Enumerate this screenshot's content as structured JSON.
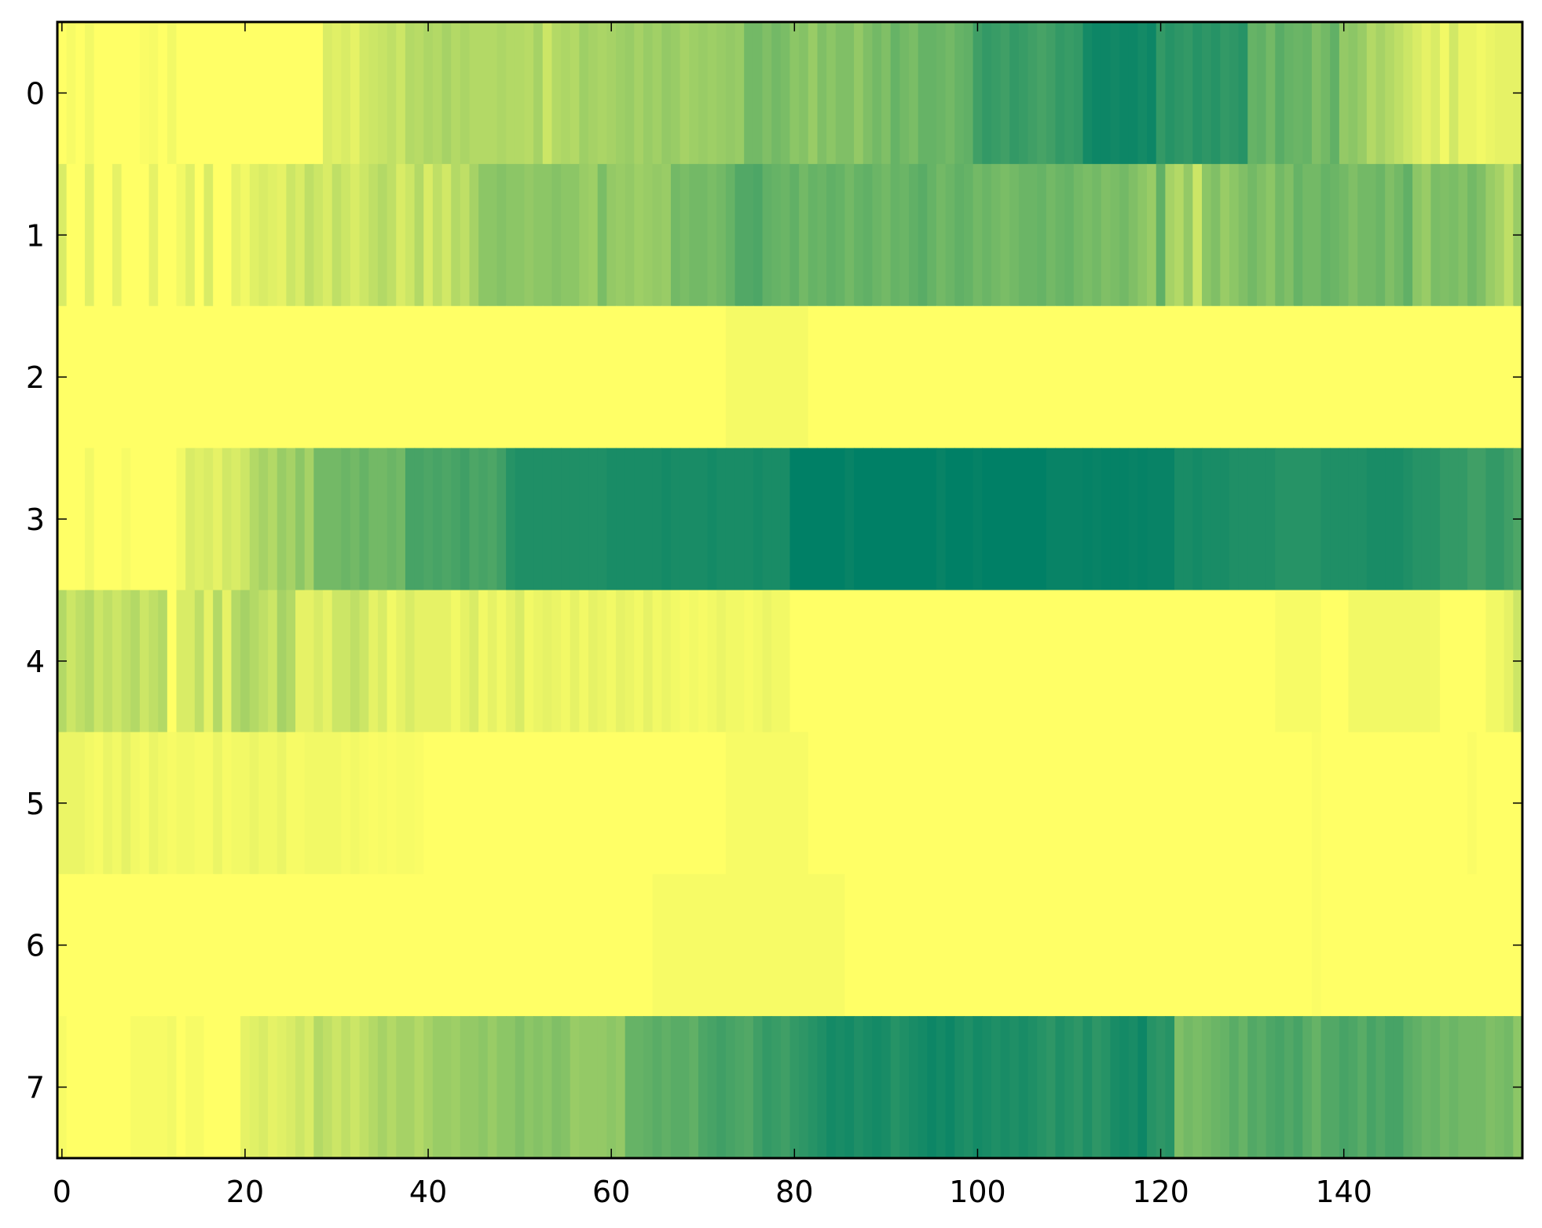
{
  "chart_data": {
    "type": "heatmap",
    "title": "",
    "xlabel": "",
    "ylabel": "",
    "colormap": "summer_r",
    "color_low": "#ffff66",
    "color_high": "#008066",
    "value_range": [
      0,
      1
    ],
    "xlim": [
      -0.5,
      159.5
    ],
    "ylim": [
      7.5,
      -0.5
    ],
    "grid": false,
    "x_ticks": [
      0,
      20,
      40,
      60,
      80,
      100,
      120,
      140
    ],
    "x_tick_labels": [
      "0",
      "20",
      "40",
      "60",
      "80",
      "100",
      "120",
      "140"
    ],
    "y_ticks": [
      0,
      1,
      2,
      3,
      4,
      5,
      6,
      7
    ],
    "y_tick_labels": [
      "0",
      "1",
      "2",
      "3",
      "4",
      "5",
      "6",
      "7"
    ],
    "rows": [
      [
        0,
        0.03,
        0,
        0.05,
        0,
        0,
        0,
        0,
        0,
        0.02,
        0.03,
        0,
        0.05,
        0,
        0,
        0,
        0,
        0,
        0,
        0,
        0,
        0,
        0,
        0,
        0,
        0,
        0,
        0,
        0,
        0.15,
        0.12,
        0.15,
        0.1,
        0.18,
        0.2,
        0.22,
        0.25,
        0.2,
        0.3,
        0.28,
        0.32,
        0.3,
        0.35,
        0.3,
        0.33,
        0.3,
        0.3,
        0.3,
        0.32,
        0.3,
        0.3,
        0.28,
        0.35,
        0.2,
        0.3,
        0.32,
        0.3,
        0.38,
        0.35,
        0.33,
        0.35,
        0.38,
        0.4,
        0.35,
        0.4,
        0.37,
        0.42,
        0.4,
        0.35,
        0.38,
        0.4,
        0.38,
        0.4,
        0.42,
        0.4,
        0.55,
        0.55,
        0.5,
        0.55,
        0.52,
        0.45,
        0.48,
        0.4,
        0.5,
        0.45,
        0.5,
        0.5,
        0.42,
        0.5,
        0.55,
        0.5,
        0.6,
        0.55,
        0.52,
        0.6,
        0.6,
        0.58,
        0.55,
        0.6,
        0.62,
        0.75,
        0.8,
        0.78,
        0.75,
        0.8,
        0.78,
        0.75,
        0.72,
        0.75,
        0.8,
        0.78,
        0.8,
        0.92,
        0.95,
        0.95,
        0.93,
        0.95,
        0.95,
        0.92,
        0.95,
        0.8,
        0.85,
        0.82,
        0.8,
        0.85,
        0.82,
        0.85,
        0.8,
        0.82,
        0.85,
        0.6,
        0.62,
        0.55,
        0.65,
        0.6,
        0.58,
        0.6,
        0.5,
        0.55,
        0.62,
        0.42,
        0.45,
        0.4,
        0.3,
        0.35,
        0.3,
        0.25,
        0.2,
        0.15,
        0.1,
        0.15,
        0.05,
        0.18,
        0.08,
        0.08,
        0.05,
        0.08,
        0.1,
        0.1,
        0.1
      ],
      [
        0.15,
        0,
        0,
        0.12,
        0,
        0,
        0.1,
        0,
        0,
        0,
        0.1,
        0,
        0,
        0.05,
        0.12,
        0,
        0.15,
        0,
        0,
        0.1,
        0.05,
        0.12,
        0.15,
        0.12,
        0.1,
        0.2,
        0.15,
        0.25,
        0.2,
        0.15,
        0.25,
        0.2,
        0.15,
        0.2,
        0.25,
        0.3,
        0.25,
        0.15,
        0.2,
        0.3,
        0.15,
        0.25,
        0.18,
        0.3,
        0.25,
        0.35,
        0.45,
        0.45,
        0.48,
        0.45,
        0.45,
        0.42,
        0.45,
        0.45,
        0.48,
        0.45,
        0.45,
        0.4,
        0.38,
        0.52,
        0.42,
        0.4,
        0.42,
        0.38,
        0.4,
        0.42,
        0.4,
        0.55,
        0.52,
        0.55,
        0.55,
        0.52,
        0.55,
        0.6,
        0.68,
        0.68,
        0.7,
        0.62,
        0.6,
        0.58,
        0.62,
        0.55,
        0.6,
        0.58,
        0.62,
        0.6,
        0.55,
        0.6,
        0.62,
        0.58,
        0.55,
        0.6,
        0.58,
        0.62,
        0.65,
        0.6,
        0.55,
        0.58,
        0.62,
        0.6,
        0.55,
        0.58,
        0.55,
        0.52,
        0.55,
        0.58,
        0.58,
        0.6,
        0.55,
        0.58,
        0.6,
        0.55,
        0.52,
        0.55,
        0.5,
        0.52,
        0.55,
        0.5,
        0.45,
        0.4,
        0.62,
        0.35,
        0.3,
        0.42,
        0.2,
        0.45,
        0.5,
        0.4,
        0.45,
        0.5,
        0.55,
        0.5,
        0.45,
        0.55,
        0.5,
        0.6,
        0.55,
        0.55,
        0.6,
        0.58,
        0.55,
        0.5,
        0.55,
        0.55,
        0.58,
        0.5,
        0.55,
        0.62,
        0.45,
        0.4,
        0.52,
        0.5,
        0.52,
        0.48,
        0.55,
        0.5,
        0.4,
        0.35,
        0.25,
        0.4
      ],
      [
        0,
        0,
        0,
        0,
        0,
        0,
        0,
        0,
        0,
        0,
        0,
        0,
        0,
        0,
        0,
        0,
        0,
        0,
        0,
        0,
        0,
        0,
        0,
        0,
        0,
        0,
        0,
        0,
        0,
        0,
        0,
        0,
        0,
        0,
        0,
        0,
        0,
        0,
        0,
        0,
        0,
        0,
        0,
        0,
        0,
        0,
        0,
        0,
        0,
        0,
        0,
        0,
        0,
        0,
        0,
        0,
        0,
        0,
        0,
        0,
        0,
        0,
        0,
        0,
        0,
        0,
        0,
        0,
        0,
        0,
        0,
        0,
        0,
        0.04,
        0.04,
        0.04,
        0.04,
        0.04,
        0.04,
        0.04,
        0.04,
        0.04,
        0,
        0,
        0,
        0,
        0,
        0,
        0,
        0,
        0,
        0,
        0,
        0,
        0,
        0,
        0,
        0,
        0,
        0,
        0,
        0,
        0,
        0,
        0,
        0,
        0,
        0,
        0,
        0,
        0,
        0,
        0,
        0,
        0,
        0,
        0,
        0,
        0,
        0,
        0,
        0,
        0,
        0,
        0,
        0,
        0,
        0,
        0,
        0,
        0,
        0,
        0,
        0,
        0,
        0,
        0,
        0,
        0,
        0,
        0,
        0,
        0,
        0,
        0,
        0,
        0,
        0,
        0,
        0,
        0,
        0,
        0,
        0,
        0,
        0,
        0,
        0,
        0,
        0
      ],
      [
        0,
        0,
        0,
        0.05,
        0,
        0,
        0,
        0.03,
        0,
        0,
        0,
        0,
        0,
        0.05,
        0.15,
        0.12,
        0.15,
        0.1,
        0.18,
        0.15,
        0.2,
        0.3,
        0.35,
        0.3,
        0.4,
        0.35,
        0.45,
        0.35,
        0.55,
        0.55,
        0.55,
        0.58,
        0.55,
        0.6,
        0.55,
        0.55,
        0.58,
        0.55,
        0.72,
        0.72,
        0.7,
        0.72,
        0.7,
        0.72,
        0.75,
        0.7,
        0.72,
        0.7,
        0.75,
        0.85,
        0.88,
        0.88,
        0.88,
        0.88,
        0.88,
        0.88,
        0.88,
        0.88,
        0.88,
        0.88,
        0.9,
        0.9,
        0.9,
        0.9,
        0.9,
        0.9,
        0.92,
        0.9,
        0.9,
        0.9,
        0.9,
        0.92,
        0.9,
        0.9,
        0.9,
        0.9,
        0.92,
        0.9,
        0.9,
        0.9,
        1,
        1,
        1,
        1,
        1,
        1,
        0.97,
        1,
        1,
        1,
        1,
        1,
        1,
        1,
        1,
        1,
        0.97,
        1,
        1,
        1,
        0.98,
        1,
        1,
        1,
        1,
        1,
        1,
        1,
        0.97,
        0.97,
        0.97,
        0.97,
        0.98,
        0.97,
        0.98,
        0.98,
        0.98,
        0.97,
        0.98,
        0.97,
        0.97,
        0.97,
        0.9,
        0.9,
        0.92,
        0.9,
        0.9,
        0.9,
        0.88,
        0.88,
        0.88,
        0.88,
        0.88,
        0.85,
        0.85,
        0.85,
        0.85,
        0.85,
        0.88,
        0.88,
        0.88,
        0.88,
        0.88,
        0.9,
        0.9,
        0.9,
        0.9,
        0.88,
        0.85,
        0.85,
        0.85,
        0.8,
        0.8,
        0.8,
        0.75,
        0.75,
        0.8,
        0.8,
        0.75,
        0.7
      ],
      [
        0.3,
        0.2,
        0.25,
        0.3,
        0.2,
        0.25,
        0.2,
        0.25,
        0.3,
        0.2,
        0.25,
        0.3,
        0,
        0.15,
        0.15,
        0.25,
        0.1,
        0.3,
        0.1,
        0.3,
        0.35,
        0.3,
        0.25,
        0.2,
        0.35,
        0.3,
        0.1,
        0.1,
        0.15,
        0.1,
        0.2,
        0.2,
        0.25,
        0.2,
        0.1,
        0.15,
        0.05,
        0.1,
        0.15,
        0.1,
        0.1,
        0.1,
        0.1,
        0.05,
        0.1,
        0.15,
        0.05,
        0.1,
        0.05,
        0.1,
        0.15,
        0.05,
        0.08,
        0.1,
        0.08,
        0.05,
        0.1,
        0.05,
        0.1,
        0.08,
        0.05,
        0.1,
        0.08,
        0.05,
        0.1,
        0.05,
        0.08,
        0.05,
        0.03,
        0.05,
        0.03,
        0.05,
        0.08,
        0.05,
        0.05,
        0.03,
        0.05,
        0.08,
        0.05,
        0.05,
        0,
        0,
        0,
        0,
        0,
        0,
        0,
        0,
        0,
        0,
        0,
        0,
        0,
        0,
        0,
        0,
        0,
        0,
        0,
        0,
        0,
        0,
        0,
        0,
        0,
        0,
        0,
        0,
        0,
        0,
        0,
        0,
        0,
        0,
        0,
        0,
        0,
        0,
        0,
        0,
        0,
        0,
        0,
        0,
        0,
        0,
        0,
        0,
        0,
        0,
        0,
        0,
        0,
        0.03,
        0.03,
        0.03,
        0.03,
        0.03,
        0,
        0,
        0,
        0.05,
        0.05,
        0.05,
        0.05,
        0.05,
        0.05,
        0.05,
        0.05,
        0.05,
        0.05,
        0,
        0,
        0,
        0,
        0,
        0.05,
        0.05,
        0.1,
        0.2
      ],
      [
        0.08,
        0.08,
        0.08,
        0.05,
        0.03,
        0.08,
        0.05,
        0.1,
        0.05,
        0.03,
        0.08,
        0.05,
        0.03,
        0.05,
        0.05,
        0.03,
        0.03,
        0.08,
        0.03,
        0.05,
        0.05,
        0.08,
        0.05,
        0.05,
        0.08,
        0.03,
        0.03,
        0.05,
        0.05,
        0.05,
        0.05,
        0.03,
        0.05,
        0.03,
        0.02,
        0.03,
        0.02,
        0.03,
        0.03,
        0.02,
        0,
        0,
        0,
        0,
        0,
        0,
        0,
        0,
        0,
        0,
        0,
        0,
        0,
        0,
        0,
        0,
        0,
        0,
        0,
        0,
        0,
        0,
        0,
        0,
        0,
        0,
        0,
        0,
        0,
        0,
        0,
        0,
        0,
        0.03,
        0.03,
        0.03,
        0.03,
        0.03,
        0.03,
        0.03,
        0.03,
        0.03,
        0,
        0,
        0,
        0,
        0,
        0,
        0,
        0,
        0,
        0,
        0,
        0,
        0,
        0,
        0,
        0,
        0,
        0,
        0,
        0,
        0,
        0,
        0,
        0,
        0,
        0,
        0,
        0,
        0,
        0,
        0,
        0,
        0,
        0,
        0,
        0,
        0,
        0,
        0,
        0,
        0,
        0,
        0,
        0,
        0,
        0,
        0,
        0,
        0,
        0,
        0,
        0,
        0,
        0,
        0,
        0.02,
        0,
        0,
        0,
        0,
        0,
        0,
        0,
        0,
        0,
        0,
        0,
        0,
        0,
        0,
        0,
        0,
        0.02,
        0,
        0,
        0,
        0,
        0
      ],
      [
        0,
        0,
        0,
        0,
        0,
        0,
        0,
        0,
        0,
        0,
        0,
        0,
        0,
        0,
        0,
        0,
        0,
        0,
        0,
        0,
        0,
        0,
        0,
        0,
        0,
        0,
        0,
        0,
        0,
        0,
        0,
        0,
        0,
        0,
        0,
        0,
        0,
        0,
        0,
        0,
        0,
        0,
        0,
        0,
        0,
        0,
        0,
        0,
        0,
        0,
        0,
        0,
        0,
        0,
        0,
        0,
        0,
        0,
        0,
        0,
        0,
        0,
        0,
        0,
        0,
        0.03,
        0.03,
        0.03,
        0.03,
        0.03,
        0.03,
        0.03,
        0.03,
        0.03,
        0.03,
        0.03,
        0.03,
        0.03,
        0.03,
        0.03,
        0.03,
        0.03,
        0.03,
        0.03,
        0.03,
        0.03,
        0,
        0,
        0,
        0,
        0,
        0,
        0,
        0,
        0,
        0,
        0,
        0,
        0,
        0,
        0,
        0,
        0,
        0,
        0,
        0,
        0,
        0,
        0,
        0,
        0,
        0,
        0,
        0,
        0,
        0,
        0,
        0,
        0,
        0,
        0,
        0,
        0,
        0,
        0,
        0,
        0,
        0,
        0,
        0,
        0,
        0,
        0,
        0,
        0,
        0,
        0,
        0.02,
        0,
        0,
        0,
        0,
        0,
        0,
        0,
        0,
        0,
        0,
        0,
        0,
        0,
        0,
        0,
        0,
        0,
        0,
        0,
        0,
        0,
        0
      ],
      [
        0.03,
        0,
        0,
        0,
        0,
        0,
        0,
        0,
        0.03,
        0.03,
        0.03,
        0.03,
        0.05,
        0,
        0.03,
        0.03,
        0,
        0,
        0,
        0,
        0.1,
        0.12,
        0.15,
        0.1,
        0.12,
        0.15,
        0.2,
        0.15,
        0.3,
        0.25,
        0.2,
        0.25,
        0.2,
        0.25,
        0.3,
        0.35,
        0.3,
        0.35,
        0.35,
        0.3,
        0.35,
        0.4,
        0.4,
        0.38,
        0.42,
        0.42,
        0.45,
        0.4,
        0.45,
        0.45,
        0.5,
        0.45,
        0.48,
        0.45,
        0.5,
        0.48,
        0.4,
        0.42,
        0.42,
        0.42,
        0.45,
        0.42,
        0.6,
        0.6,
        0.62,
        0.65,
        0.62,
        0.65,
        0.65,
        0.62,
        0.7,
        0.72,
        0.75,
        0.72,
        0.7,
        0.68,
        0.75,
        0.8,
        0.78,
        0.75,
        0.8,
        0.82,
        0.85,
        0.88,
        0.92,
        0.9,
        0.92,
        0.88,
        0.9,
        0.92,
        0.9,
        0.85,
        0.88,
        0.9,
        0.92,
        0.95,
        0.92,
        0.95,
        0.9,
        0.88,
        0.92,
        0.9,
        0.88,
        0.9,
        0.88,
        0.9,
        0.88,
        0.85,
        0.82,
        0.88,
        0.85,
        0.82,
        0.88,
        0.82,
        0.85,
        0.9,
        0.92,
        0.9,
        0.95,
        0.85,
        0.82,
        0.85,
        0.5,
        0.55,
        0.52,
        0.55,
        0.58,
        0.6,
        0.65,
        0.6,
        0.68,
        0.65,
        0.7,
        0.72,
        0.68,
        0.72,
        0.65,
        0.6,
        0.68,
        0.68,
        0.72,
        0.7,
        0.65,
        0.72,
        0.68,
        0.72,
        0.72,
        0.65,
        0.62,
        0.58,
        0.6,
        0.55,
        0.58,
        0.55,
        0.55,
        0.55,
        0.5,
        0.52,
        0.55,
        0.45
      ]
    ]
  }
}
